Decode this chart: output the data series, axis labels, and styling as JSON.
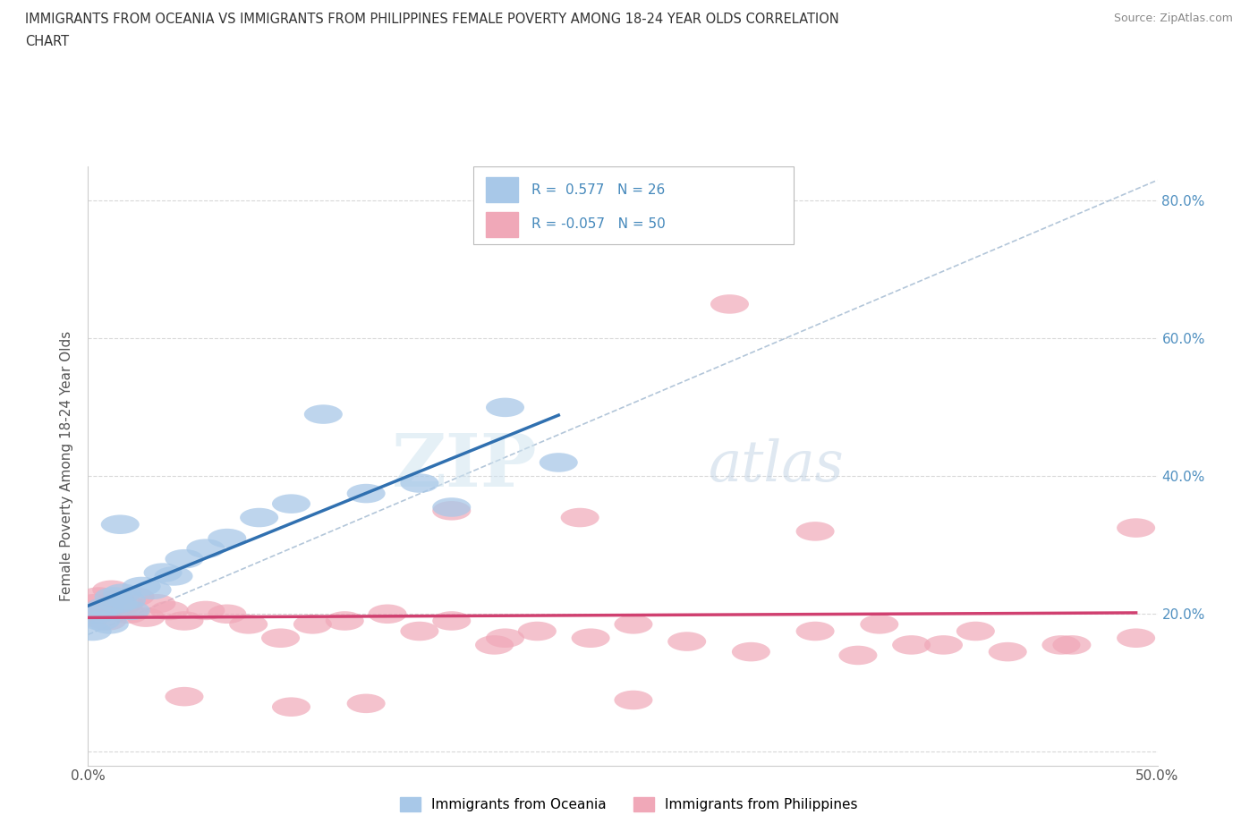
{
  "title_line1": "IMMIGRANTS FROM OCEANIA VS IMMIGRANTS FROM PHILIPPINES FEMALE POVERTY AMONG 18-24 YEAR OLDS CORRELATION",
  "title_line2": "CHART",
  "source": "Source: ZipAtlas.com",
  "ylabel": "Female Poverty Among 18-24 Year Olds",
  "xlim": [
    0.0,
    0.5
  ],
  "ylim": [
    -0.02,
    0.85
  ],
  "xticks": [
    0.0,
    0.1,
    0.2,
    0.3,
    0.4,
    0.5
  ],
  "yticks": [
    0.0,
    0.2,
    0.4,
    0.6,
    0.8
  ],
  "xticklabels": [
    "0.0%",
    "",
    "",
    "",
    "",
    "50.0%"
  ],
  "yticklabels_right": [
    "",
    "20.0%",
    "40.0%",
    "60.0%",
    "80.0%"
  ],
  "watermark_zip": "ZIP",
  "watermark_atlas": "atlas",
  "oceania_color": "#a8c8e8",
  "philippines_color": "#f0a8b8",
  "oceania_line_color": "#3070b0",
  "philippines_line_color": "#d04070",
  "diag_line_color": "#a0b8d0",
  "oceania_x": [
    0.002,
    0.004,
    0.006,
    0.008,
    0.01,
    0.012,
    0.014,
    0.016,
    0.018,
    0.02,
    0.025,
    0.03,
    0.035,
    0.04,
    0.045,
    0.055,
    0.065,
    0.08,
    0.095,
    0.11,
    0.13,
    0.155,
    0.17,
    0.195,
    0.22,
    0.015
  ],
  "oceania_y": [
    0.175,
    0.2,
    0.19,
    0.21,
    0.185,
    0.225,
    0.215,
    0.23,
    0.22,
    0.205,
    0.24,
    0.235,
    0.26,
    0.255,
    0.28,
    0.295,
    0.31,
    0.34,
    0.36,
    0.49,
    0.375,
    0.39,
    0.355,
    0.5,
    0.42,
    0.33
  ],
  "philippines_x": [
    0.001,
    0.003,
    0.005,
    0.007,
    0.009,
    0.011,
    0.013,
    0.015,
    0.017,
    0.019,
    0.022,
    0.027,
    0.032,
    0.038,
    0.045,
    0.055,
    0.065,
    0.075,
    0.09,
    0.105,
    0.12,
    0.14,
    0.155,
    0.17,
    0.19,
    0.21,
    0.235,
    0.255,
    0.28,
    0.31,
    0.34,
    0.37,
    0.4,
    0.43,
    0.46,
    0.49,
    0.17,
    0.23,
    0.3,
    0.34,
    0.385,
    0.415,
    0.455,
    0.095,
    0.13,
    0.255,
    0.195,
    0.36,
    0.49,
    0.045
  ],
  "philippines_y": [
    0.195,
    0.215,
    0.225,
    0.205,
    0.19,
    0.235,
    0.22,
    0.21,
    0.215,
    0.2,
    0.225,
    0.195,
    0.215,
    0.205,
    0.19,
    0.205,
    0.2,
    0.185,
    0.165,
    0.185,
    0.19,
    0.2,
    0.175,
    0.19,
    0.155,
    0.175,
    0.165,
    0.185,
    0.16,
    0.145,
    0.175,
    0.185,
    0.155,
    0.145,
    0.155,
    0.165,
    0.35,
    0.34,
    0.65,
    0.32,
    0.155,
    0.175,
    0.155,
    0.065,
    0.07,
    0.075,
    0.165,
    0.14,
    0.325,
    0.08
  ]
}
